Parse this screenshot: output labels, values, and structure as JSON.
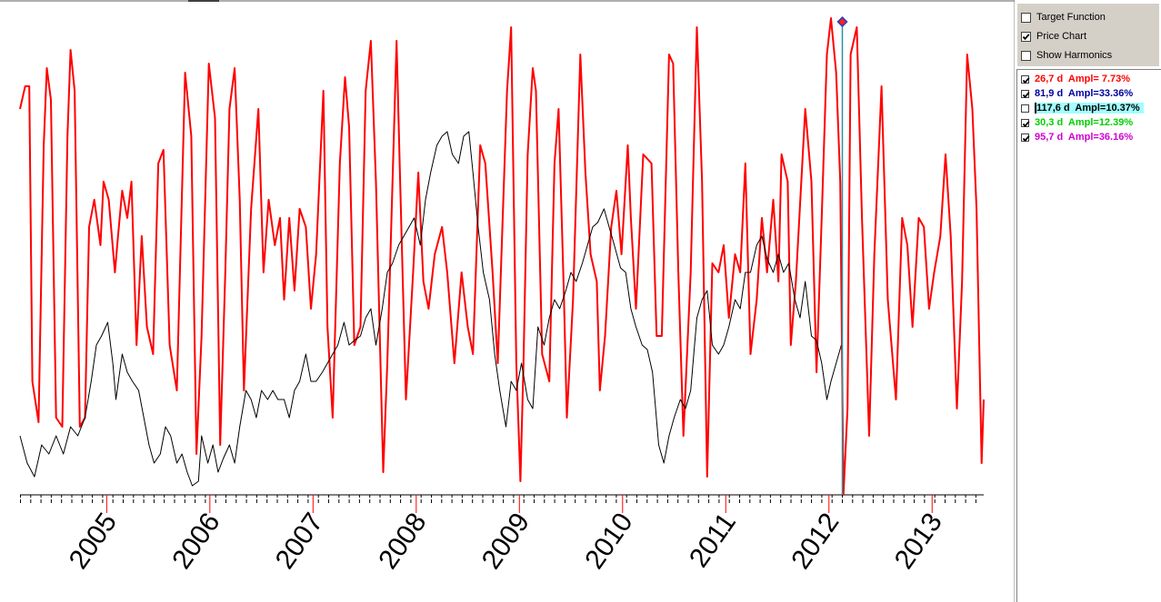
{
  "chart_data": {
    "type": "line",
    "xlim": [
      2004.16,
      2013.5
    ],
    "ylim": [
      0,
      527
    ],
    "xticks": [
      2005,
      2006,
      2007,
      2008,
      2009,
      2010,
      2011,
      2012,
      2013
    ],
    "cursor_x": 2012.13,
    "series": [
      {
        "color": "#ff0000",
        "x": [
          2004.16,
          2004.21,
          2004.25,
          2004.28,
          2004.34,
          2004.39,
          2004.42,
          2004.46,
          2004.51,
          2004.57,
          2004.62,
          2004.65,
          2004.69,
          2004.74,
          2004.79,
          2004.83,
          2004.88,
          2004.94,
          2004.97,
          2005.02,
          2005.08,
          2005.11,
          2005.15,
          2005.2,
          2005.24,
          2005.29,
          2005.34,
          2005.39,
          2005.45,
          2005.5,
          2005.55,
          2005.61,
          2005.68,
          2005.76,
          2005.82,
          2005.87,
          2005.92,
          2005.99,
          2006.05,
          2006.1,
          2006.15,
          2006.19,
          2006.24,
          2006.29,
          2006.33,
          2006.4,
          2006.47,
          2006.52,
          2006.57,
          2006.63,
          2006.68,
          2006.72,
          2006.77,
          2006.82,
          2006.87,
          2006.93,
          2006.98,
          2007.03,
          2007.1,
          2007.14,
          2007.19,
          2007.26,
          2007.31,
          2007.35,
          2007.4,
          2007.46,
          2007.51,
          2007.56,
          2007.61,
          2007.68,
          2007.72,
          2007.81,
          2007.84,
          2007.9,
          2007.97,
          2008.02,
          2008.07,
          2008.12,
          2008.18,
          2008.25,
          2008.3,
          2008.37,
          2008.44,
          2008.5,
          2008.55,
          2008.62,
          2008.67,
          2008.74,
          2008.79,
          2008.88,
          2008.92,
          2008.97,
          2009.01,
          2009.04,
          2009.08,
          2009.13,
          2009.16,
          2009.22,
          2009.29,
          2009.34,
          2009.38,
          2009.43,
          2009.46,
          2009.52,
          2009.59,
          2009.64,
          2009.69,
          2009.75,
          2009.78,
          2009.83,
          2009.89,
          2009.94,
          2009.99,
          2010.05,
          2010.08,
          2010.13,
          2010.2,
          2010.28,
          2010.33,
          2010.38,
          2010.45,
          2010.49,
          2010.54,
          2010.59,
          2010.66,
          2010.72,
          2010.77,
          2010.82,
          2010.87,
          2010.93,
          2010.98,
          2011.03,
          2011.09,
          2011.14,
          2011.19,
          2011.24,
          2011.3,
          2011.35,
          2011.4,
          2011.46,
          2011.51,
          2011.54,
          2011.6,
          2011.63,
          2011.68,
          2011.77,
          2011.83,
          2011.88,
          2011.93,
          2011.98,
          2012.02,
          2012.07,
          2012.11,
          2012.14,
          2012.18,
          2012.21,
          2012.27,
          2012.32,
          2012.39,
          2012.44,
          2012.51,
          2012.57,
          2012.65,
          2012.71,
          2012.76,
          2012.81,
          2012.87,
          2012.92,
          2012.97,
          2013.02,
          2013.08,
          2013.13,
          2013.18,
          2013.24,
          2013.29,
          2013.34,
          2013.39,
          2013.43,
          2013.48,
          2013.5
        ],
        "values": [
          425,
          450,
          450,
          125,
          80,
          385,
          470,
          435,
          85,
          75,
          395,
          490,
          445,
          75,
          85,
          295,
          325,
          275,
          345,
          325,
          245,
          285,
          335,
          305,
          345,
          165,
          285,
          185,
          155,
          365,
          380,
          165,
          115,
          465,
          395,
          45,
          175,
          475,
          415,
          55,
          245,
          425,
          470,
          325,
          115,
          315,
          425,
          245,
          325,
          275,
          305,
          215,
          305,
          225,
          315,
          295,
          205,
          265,
          445,
          185,
          85,
          365,
          460,
          405,
          165,
          185,
          445,
          500,
          345,
          25,
          145,
          500,
          365,
          105,
          245,
          355,
          235,
          205,
          265,
          295,
          245,
          145,
          245,
          185,
          155,
          385,
          365,
          245,
          145,
          445,
          515,
          145,
          15,
          145,
          375,
          470,
          445,
          155,
          125,
          365,
          425,
          225,
          85,
          215,
          485,
          355,
          265,
          235,
          115,
          175,
          295,
          335,
          265,
          385,
          305,
          205,
          375,
          365,
          175,
          175,
          485,
          475,
          245,
          65,
          245,
          515,
          345,
          20,
          255,
          245,
          275,
          195,
          265,
          245,
          365,
          155,
          215,
          305,
          245,
          325,
          235,
          375,
          345,
          165,
          235,
          425,
          345,
          135,
          305,
          485,
          525,
          465,
          345,
          0,
          95,
          485,
          515,
          305,
          65,
          265,
          450,
          215,
          105,
          305,
          275,
          185,
          305,
          295,
          205,
          245,
          285,
          375,
          285,
          95,
          235,
          485,
          425,
          315,
          35,
          105
        ]
      },
      {
        "color": "#000000",
        "x": [
          2004.16,
          2004.23,
          2004.3,
          2004.37,
          2004.44,
          2004.51,
          2004.58,
          2004.65,
          2004.72,
          2004.79,
          2004.85,
          2004.9,
          2004.95,
          2005.01,
          2005.06,
          2005.09,
          2005.15,
          2005.2,
          2005.25,
          2005.31,
          2005.36,
          2005.41,
          2005.46,
          2005.52,
          2005.57,
          2005.62,
          2005.68,
          2005.73,
          2005.78,
          2005.83,
          2005.89,
          2005.92,
          2005.98,
          2006.03,
          2006.08,
          2006.13,
          2006.19,
          2006.24,
          2006.29,
          2006.35,
          2006.4,
          2006.45,
          2006.5,
          2006.56,
          2006.61,
          2006.66,
          2006.72,
          2006.77,
          2006.82,
          2006.87,
          2006.93,
          2006.98,
          2007.03,
          2007.09,
          2007.14,
          2007.19,
          2007.24,
          2007.3,
          2007.35,
          2007.4,
          2007.46,
          2007.51,
          2007.56,
          2007.61,
          2007.67,
          2007.72,
          2007.77,
          2007.83,
          2007.88,
          2007.93,
          2007.98,
          2008.04,
          2008.09,
          2008.14,
          2008.2,
          2008.25,
          2008.3,
          2008.35,
          2008.41,
          2008.46,
          2008.51,
          2008.55,
          2008.6,
          2008.65,
          2008.71,
          2008.76,
          2008.81,
          2008.87,
          2008.92,
          2008.97,
          2009.02,
          2009.08,
          2009.13,
          2009.18,
          2009.24,
          2009.29,
          2009.34,
          2009.39,
          2009.45,
          2009.5,
          2009.55,
          2009.61,
          2009.66,
          2009.71,
          2009.76,
          2009.82,
          2009.87,
          2009.92,
          2009.98,
          2010.03,
          2010.08,
          2010.13,
          2010.19,
          2010.24,
          2010.29,
          2010.35,
          2010.4,
          2010.45,
          2010.5,
          2010.56,
          2010.61,
          2010.66,
          2010.72,
          2010.77,
          2010.82,
          2010.87,
          2010.93,
          2010.98,
          2011.03,
          2011.09,
          2011.14,
          2011.19,
          2011.24,
          2011.3,
          2011.35,
          2011.4,
          2011.46,
          2011.51,
          2011.56,
          2011.61,
          2011.67,
          2011.72,
          2011.77,
          2011.83,
          2011.88,
          2011.93,
          2011.98,
          2012.02,
          2012.07,
          2012.12
        ],
        "values": [
          65,
          35,
          20,
          55,
          45,
          65,
          45,
          75,
          65,
          85,
          125,
          165,
          175,
          190,
          145,
          105,
          155,
          135,
          125,
          115,
          85,
          55,
          35,
          45,
          75,
          65,
          35,
          45,
          25,
          10,
          15,
          65,
          35,
          55,
          25,
          40,
          55,
          35,
          75,
          115,
          105,
          85,
          115,
          105,
          115,
          105,
          105,
          85,
          115,
          125,
          155,
          125,
          125,
          135,
          145,
          155,
          165,
          190,
          165,
          170,
          175,
          195,
          205,
          165,
          205,
          245,
          255,
          275,
          285,
          295,
          305,
          275,
          325,
          355,
          385,
          395,
          400,
          375,
          365,
          395,
          400,
          355,
          295,
          245,
          215,
          155,
          115,
          75,
          125,
          115,
          145,
          105,
          95,
          185,
          165,
          195,
          215,
          205,
          225,
          245,
          235,
          255,
          275,
          295,
          300,
          315,
          295,
          275,
          250,
          245,
          205,
          185,
          165,
          160,
          135,
          55,
          35,
          65,
          85,
          105,
          95,
          115,
          195,
          215,
          225,
          165,
          155,
          165,
          185,
          215,
          205,
          245,
          245,
          275,
          285,
          260,
          245,
          265,
          245,
          255,
          215,
          195,
          235,
          175,
          170,
          145,
          105,
          125,
          145,
          165
        ]
      }
    ]
  },
  "panel": {
    "options": [
      {
        "label": "Target Function",
        "checked": false
      },
      {
        "label": "Price Chart",
        "checked": true
      },
      {
        "label": "Show Harmonics",
        "checked": false
      }
    ],
    "harmonics": [
      {
        "label": "26,7 d  Ampl= 7.73%",
        "checked": true,
        "color": "#ff0000"
      },
      {
        "label": "81,9 d  Ampl=33.36%",
        "checked": true,
        "color": "#0000a0"
      },
      {
        "label": "117,6 d  Ampl=10.37%",
        "checked": false,
        "color": "#000000",
        "selected": true
      },
      {
        "label": "30,3 d  Ampl=12.39%",
        "checked": true,
        "color": "#00d000"
      },
      {
        "label": "95,7 d  Ampl=36.16%",
        "checked": true,
        "color": "#d000d0"
      }
    ]
  }
}
